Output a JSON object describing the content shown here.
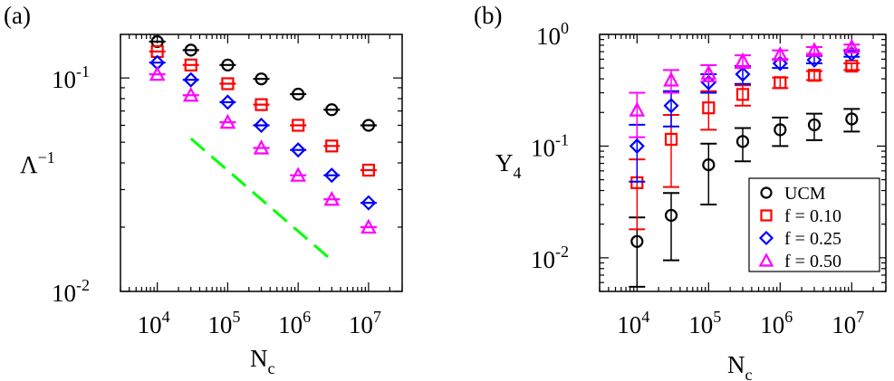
{
  "chart_data": [
    {
      "panel_label": "(a)",
      "type": "scatter",
      "xscale": "log",
      "yscale": "log",
      "xlim": [
        3000,
        30000000
      ],
      "ylim": [
        0.01,
        0.16
      ],
      "xlabel": {
        "main": "N",
        "sub": "c"
      },
      "ylabel": {
        "main": "Λ",
        "sup": "−1"
      },
      "xticks": [
        {
          "value": 10000,
          "base": "10",
          "exp": "4"
        },
        {
          "value": 100000,
          "base": "10",
          "exp": "5"
        },
        {
          "value": 1000000,
          "base": "10",
          "exp": "6"
        },
        {
          "value": 10000000,
          "base": "10",
          "exp": "7"
        }
      ],
      "yticks": [
        {
          "value": 0.01,
          "base": "10",
          "exp": "-2"
        },
        {
          "value": 0.1,
          "base": "10",
          "exp": "-1"
        }
      ],
      "x": [
        10000,
        30000,
        100000,
        300000,
        1000000,
        3000000,
        10000000
      ],
      "series": [
        {
          "name": "UCM",
          "marker": "circle",
          "color": "#000000",
          "values": [
            0.148,
            0.135,
            0.115,
            0.099,
            0.084,
            0.071,
            0.06
          ]
        },
        {
          "name": "f = 0.10",
          "marker": "square",
          "color": "#ff0000",
          "values": [
            0.133,
            0.115,
            0.094,
            0.075,
            0.06,
            0.048,
            0.037
          ]
        },
        {
          "name": "f = 0.25",
          "marker": "diamond",
          "color": "#0000ff",
          "values": [
            0.118,
            0.098,
            0.077,
            0.06,
            0.046,
            0.035,
            0.026
          ]
        },
        {
          "name": "f = 0.50",
          "marker": "triangle",
          "color": "#ff00ff",
          "values": [
            0.104,
            0.083,
            0.062,
            0.047,
            0.035,
            0.027,
            0.02
          ]
        }
      ],
      "annotations": [
        {
          "type": "dashed-line",
          "color": "#00ff00",
          "x": [
            30000,
            3000000
          ],
          "y": [
            0.052,
            0.014
          ]
        }
      ]
    },
    {
      "panel_label": "(b)",
      "type": "scatter",
      "xscale": "log",
      "yscale": "log",
      "xlim": [
        3000,
        30000000
      ],
      "ylim": [
        0.005,
        1.0
      ],
      "xlabel": {
        "main": "N",
        "sub": "c"
      },
      "ylabel": {
        "main": "Y",
        "sub": "4"
      },
      "xticks": [
        {
          "value": 10000,
          "base": "10",
          "exp": "4"
        },
        {
          "value": 100000,
          "base": "10",
          "exp": "5"
        },
        {
          "value": 1000000,
          "base": "10",
          "exp": "6"
        },
        {
          "value": 10000000,
          "base": "10",
          "exp": "7"
        }
      ],
      "yticks": [
        {
          "value": 0.01,
          "base": "10",
          "exp": "-2"
        },
        {
          "value": 0.1,
          "base": "10",
          "exp": "-1"
        },
        {
          "value": 1.0,
          "base": "10",
          "exp": "0"
        }
      ],
      "x": [
        10000,
        30000,
        100000,
        300000,
        1000000,
        3000000,
        10000000
      ],
      "legend": {
        "position": "bottom-right"
      },
      "series": [
        {
          "name": "UCM",
          "marker": "circle",
          "color": "#000000",
          "values": [
            0.014,
            0.024,
            0.068,
            0.11,
            0.14,
            0.155,
            0.175
          ],
          "err_low": [
            0.0055,
            0.0095,
            0.03,
            0.073,
            0.1,
            0.113,
            0.135
          ],
          "err_high": [
            0.023,
            0.038,
            0.105,
            0.145,
            0.18,
            0.195,
            0.215
          ]
        },
        {
          "name": "f = 0.10",
          "marker": "square",
          "color": "#ff0000",
          "values": [
            0.047,
            0.115,
            0.22,
            0.29,
            0.37,
            0.43,
            0.52
          ],
          "err_low": [
            0.018,
            0.043,
            0.14,
            0.23,
            0.33,
            0.39,
            0.48
          ],
          "err_high": [
            0.076,
            0.19,
            0.31,
            0.35,
            0.41,
            0.47,
            0.55
          ]
        },
        {
          "name": "f = 0.25",
          "marker": "diamond",
          "color": "#0000ff",
          "values": [
            0.1,
            0.23,
            0.37,
            0.44,
            0.55,
            0.59,
            0.67
          ],
          "err_low": [
            0.048,
            0.15,
            0.3,
            0.36,
            0.5,
            0.55,
            0.63
          ],
          "err_high": [
            0.155,
            0.31,
            0.44,
            0.52,
            0.6,
            0.64,
            0.71
          ]
        },
        {
          "name": "f = 0.50",
          "marker": "triangle",
          "color": "#ff00ff",
          "values": [
            0.21,
            0.39,
            0.45,
            0.58,
            0.66,
            0.72,
            0.77
          ],
          "err_low": [
            0.12,
            0.3,
            0.38,
            0.5,
            0.6,
            0.67,
            0.73
          ],
          "err_high": [
            0.3,
            0.48,
            0.53,
            0.65,
            0.72,
            0.77,
            0.81
          ]
        }
      ]
    }
  ]
}
